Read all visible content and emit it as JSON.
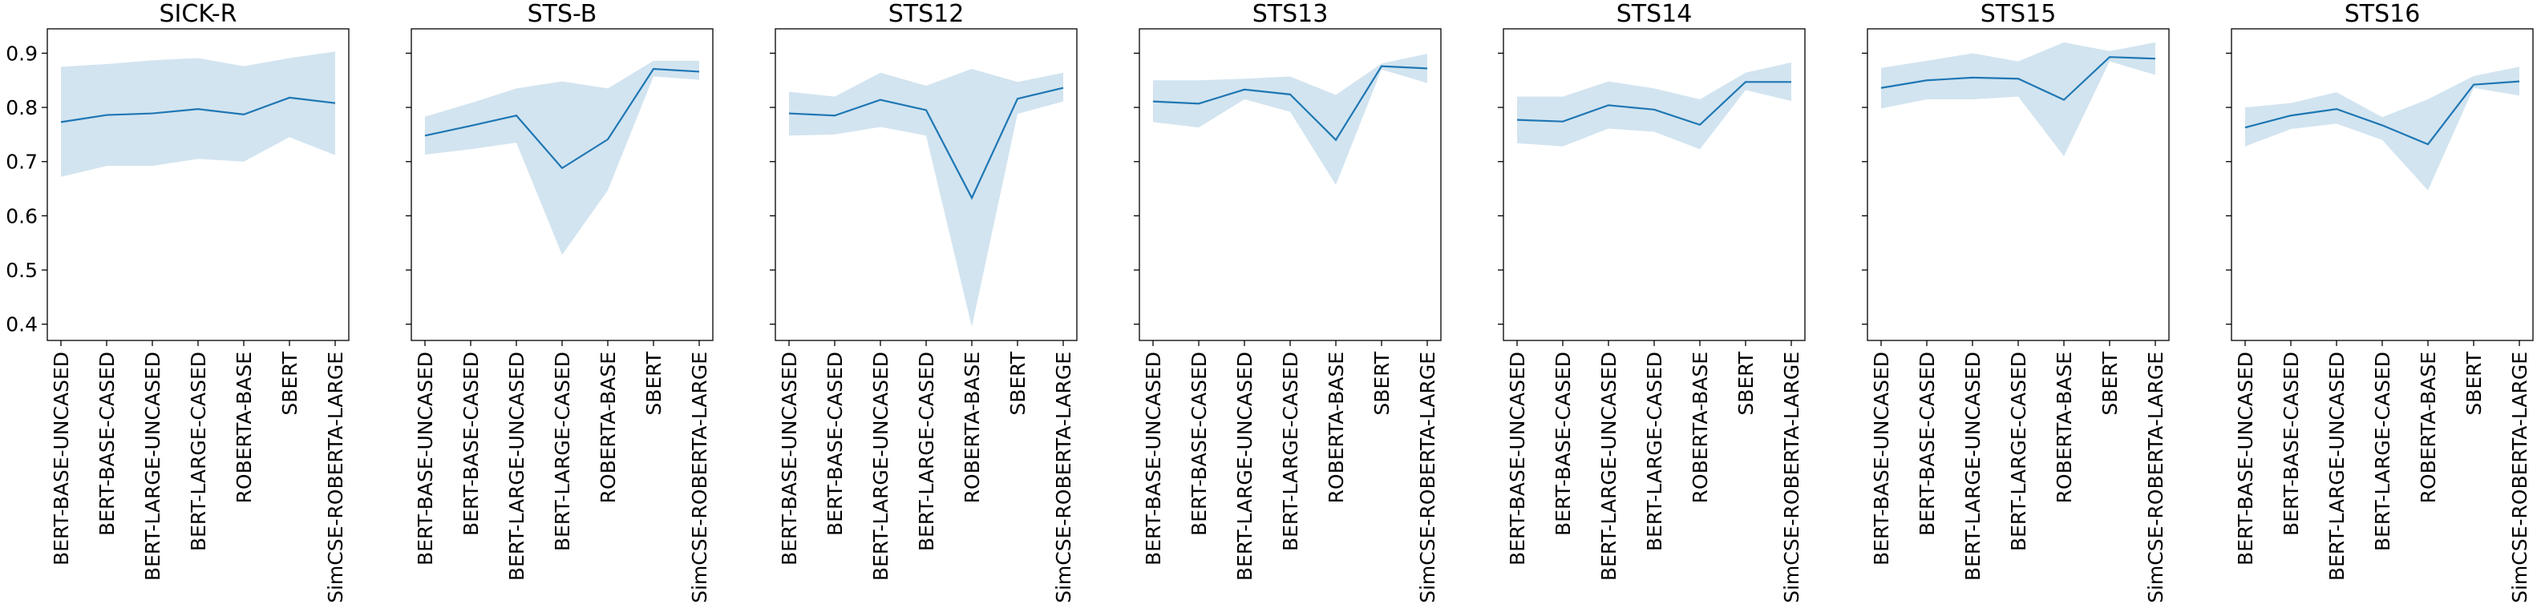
{
  "chart_data": [
    {
      "type": "line",
      "title": "SICK-R",
      "categories": [
        "BERT-BASE-UNCASED",
        "BERT-BASE-CASED",
        "BERT-LARGE-UNCASED",
        "BERT-LARGE-CASED",
        "ROBERTA-BASE",
        "SBERT",
        "SimCSE-ROBERTA-LARGE"
      ],
      "series": [
        {
          "mean": [
            0.773,
            0.786,
            0.789,
            0.797,
            0.787,
            0.818,
            0.808
          ],
          "lower": [
            0.672,
            0.692,
            0.692,
            0.705,
            0.7,
            0.745,
            0.712
          ],
          "upper": [
            0.875,
            0.88,
            0.887,
            0.891,
            0.876,
            0.891,
            0.903
          ]
        }
      ]
    },
    {
      "type": "line",
      "title": "STS-B",
      "categories": [
        "BERT-BASE-UNCASED",
        "BERT-BASE-CASED",
        "BERT-LARGE-UNCASED",
        "BERT-LARGE-CASED",
        "ROBERTA-BASE",
        "SBERT",
        "SimCSE-ROBERTA-LARGE"
      ],
      "series": [
        {
          "mean": [
            0.748,
            0.766,
            0.785,
            0.688,
            0.741,
            0.871,
            0.866
          ],
          "lower": [
            0.713,
            0.723,
            0.735,
            0.528,
            0.647,
            0.857,
            0.851
          ],
          "upper": [
            0.783,
            0.808,
            0.835,
            0.848,
            0.835,
            0.886,
            0.886
          ]
        }
      ]
    },
    {
      "type": "line",
      "title": "STS12",
      "categories": [
        "BERT-BASE-UNCASED",
        "BERT-BASE-CASED",
        "BERT-LARGE-UNCASED",
        "BERT-LARGE-CASED",
        "ROBERTA-BASE",
        "SBERT",
        "SimCSE-ROBERTA-LARGE"
      ],
      "series": [
        {
          "mean": [
            0.789,
            0.785,
            0.814,
            0.795,
            0.633,
            0.816,
            0.836
          ],
          "lower": [
            0.748,
            0.75,
            0.764,
            0.748,
            0.395,
            0.788,
            0.811
          ],
          "upper": [
            0.829,
            0.82,
            0.864,
            0.84,
            0.871,
            0.847,
            0.864
          ]
        }
      ]
    },
    {
      "type": "line",
      "title": "STS13",
      "categories": [
        "BERT-BASE-UNCASED",
        "BERT-BASE-CASED",
        "BERT-LARGE-UNCASED",
        "BERT-LARGE-CASED",
        "ROBERTA-BASE",
        "SBERT",
        "SimCSE-ROBERTA-LARGE"
      ],
      "series": [
        {
          "mean": [
            0.811,
            0.807,
            0.833,
            0.824,
            0.74,
            0.876,
            0.872
          ],
          "lower": [
            0.773,
            0.763,
            0.815,
            0.792,
            0.657,
            0.87,
            0.845
          ],
          "upper": [
            0.85,
            0.85,
            0.853,
            0.857,
            0.823,
            0.881,
            0.899
          ]
        }
      ]
    },
    {
      "type": "line",
      "title": "STS14",
      "categories": [
        "BERT-BASE-UNCASED",
        "BERT-BASE-CASED",
        "BERT-LARGE-UNCASED",
        "BERT-LARGE-CASED",
        "ROBERTA-BASE",
        "SBERT",
        "SimCSE-ROBERTA-LARGE"
      ],
      "series": [
        {
          "mean": [
            0.777,
            0.774,
            0.804,
            0.796,
            0.768,
            0.847,
            0.847
          ],
          "lower": [
            0.734,
            0.728,
            0.761,
            0.755,
            0.723,
            0.832,
            0.812
          ],
          "upper": [
            0.82,
            0.82,
            0.848,
            0.835,
            0.815,
            0.864,
            0.883
          ]
        }
      ]
    },
    {
      "type": "line",
      "title": "STS15",
      "categories": [
        "BERT-BASE-UNCASED",
        "BERT-BASE-CASED",
        "BERT-LARGE-UNCASED",
        "BERT-LARGE-CASED",
        "ROBERTA-BASE",
        "SBERT",
        "SimCSE-ROBERTA-LARGE"
      ],
      "series": [
        {
          "mean": [
            0.836,
            0.85,
            0.855,
            0.853,
            0.814,
            0.893,
            0.89
          ],
          "lower": [
            0.798,
            0.815,
            0.815,
            0.82,
            0.71,
            0.885,
            0.86
          ],
          "upper": [
            0.873,
            0.886,
            0.9,
            0.885,
            0.92,
            0.904,
            0.92
          ]
        }
      ]
    },
    {
      "type": "line",
      "title": "STS16",
      "categories": [
        "BERT-BASE-UNCASED",
        "BERT-BASE-CASED",
        "BERT-LARGE-UNCASED",
        "BERT-LARGE-CASED",
        "ROBERTA-BASE",
        "SBERT",
        "SimCSE-ROBERTA-LARGE"
      ],
      "series": [
        {
          "mean": [
            0.763,
            0.785,
            0.797,
            0.767,
            0.732,
            0.842,
            0.848
          ],
          "lower": [
            0.728,
            0.76,
            0.77,
            0.74,
            0.647,
            0.836,
            0.822
          ],
          "upper": [
            0.8,
            0.808,
            0.828,
            0.782,
            0.815,
            0.858,
            0.875
          ]
        }
      ]
    }
  ],
  "axis": {
    "ylim": [
      0.37,
      0.945
    ],
    "yticks": [
      0.4,
      0.5,
      0.6,
      0.7,
      0.8,
      0.9
    ],
    "ytick_labels": [
      "0.4",
      "0.5",
      "0.6",
      "0.7",
      "0.8",
      "0.9"
    ],
    "grid": false
  },
  "colors": {
    "line": "#1f77b4",
    "band": "#1f77b4",
    "frame": "#000000"
  }
}
